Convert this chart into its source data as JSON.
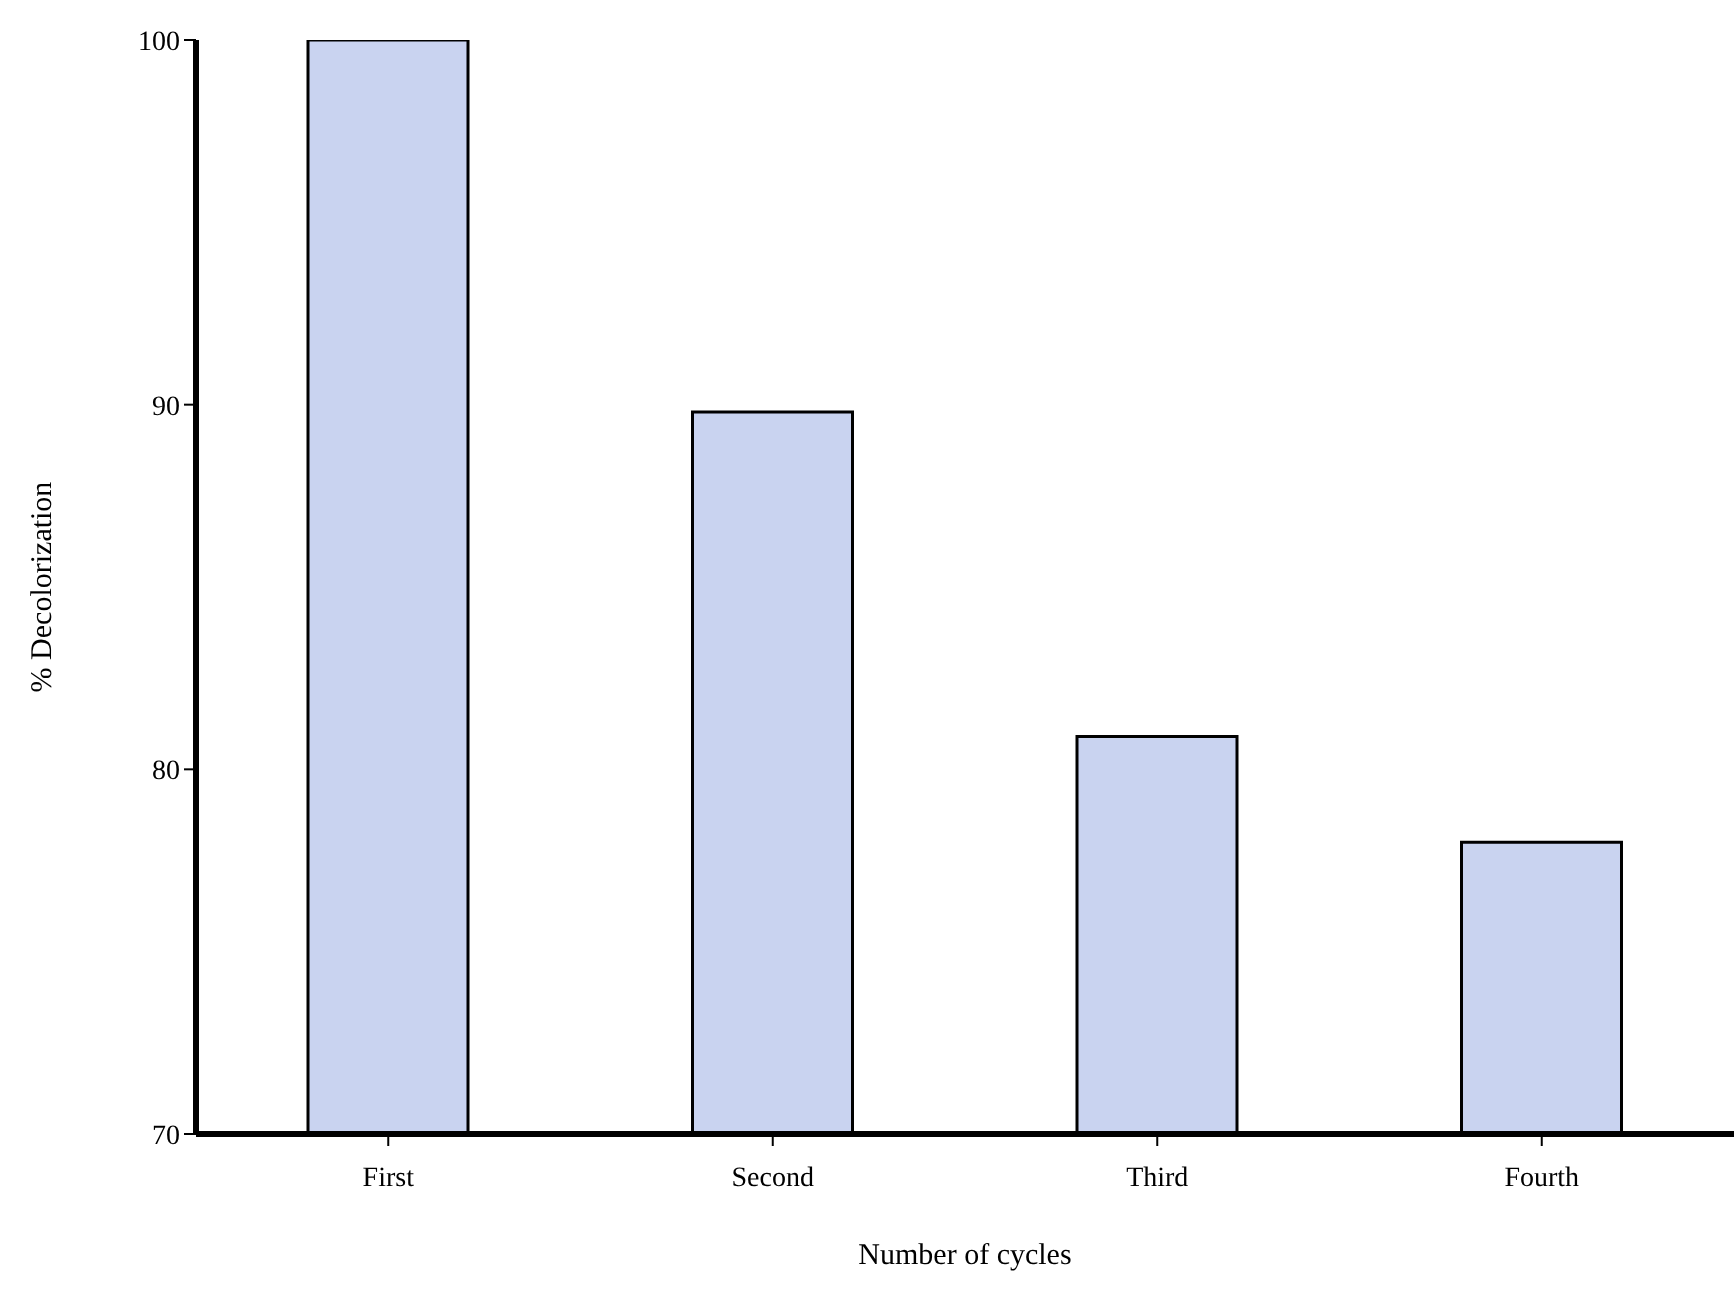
{
  "chart_data": {
    "type": "bar",
    "xlabel": "Number of cycles",
    "ylabel": "% Decolorization",
    "categories": [
      "First",
      "Second",
      "Third",
      "Fourth"
    ],
    "values": [
      100,
      89.8,
      80.9,
      78
    ],
    "color": "#c9d3f0",
    "ylim": [
      70,
      100
    ],
    "yticks": [
      70,
      80,
      90,
      100
    ],
    "grid": false,
    "legend": false
  }
}
